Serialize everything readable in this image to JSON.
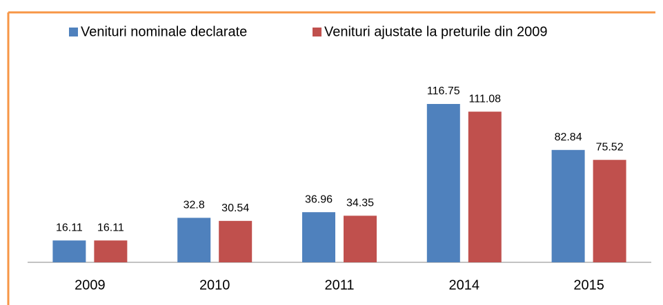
{
  "chart_data": {
    "type": "bar",
    "categories": [
      "2009",
      "2010",
      "2011",
      "2014",
      "2015"
    ],
    "series": [
      {
        "name": "Venituri nominale declarate",
        "color": "#4f81bd",
        "values": [
          16.11,
          32.8,
          36.96,
          116.75,
          82.84
        ]
      },
      {
        "name": "Venituri ajustate la preturile din 2009",
        "color": "#c0504d",
        "values": [
          16.11,
          30.54,
          34.35,
          111.08,
          75.52
        ]
      }
    ],
    "legend": "top"
  }
}
